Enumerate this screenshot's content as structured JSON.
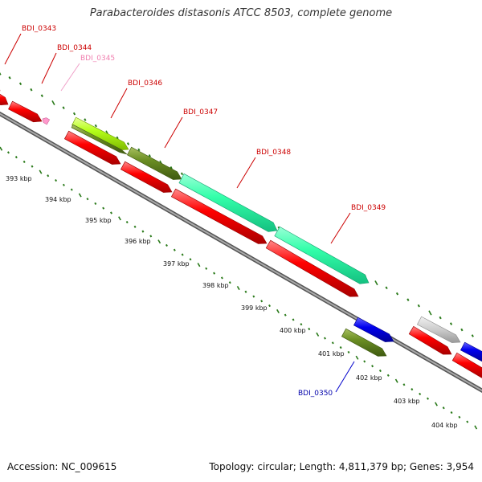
{
  "title": "Parabacteroides distasonis ATCC 8503, complete genome",
  "footer": {
    "accession": "Accession: NC_009615",
    "topology": "Topology: circular; Length: 4,811,379 bp; Genes: 3,954"
  },
  "kbp_labels": [
    "393 kbp",
    "394 kbp",
    "395 kbp",
    "396 kbp",
    "397 kbp",
    "398 kbp",
    "399 kbp",
    "400 kbp",
    "401 kbp",
    "402 kbp",
    "403 kbp",
    "404 kbp"
  ],
  "gene_labels": [
    "BDI_0343",
    "BDI_0344",
    "BDI_0345",
    "BDI_0346",
    "BDI_0347",
    "BDI_0348",
    "BDI_0349",
    "BDI_0350"
  ],
  "colors": {
    "gene_label_red": "#cc0000",
    "gene_label_pink": "#f080b0",
    "gene_label_blue": "#0000aa",
    "cds_red": "#ff0000",
    "feature_olive": "#6b8e23",
    "feature_lime": "#b5ff1a",
    "feature_teal": "#33ffaa",
    "feature_blue": "#0000ee",
    "feature_gray": "#cccccc",
    "feature_pink": "#ff99cc",
    "backbone": "#888888",
    "ticks": "#2a7a1a"
  }
}
